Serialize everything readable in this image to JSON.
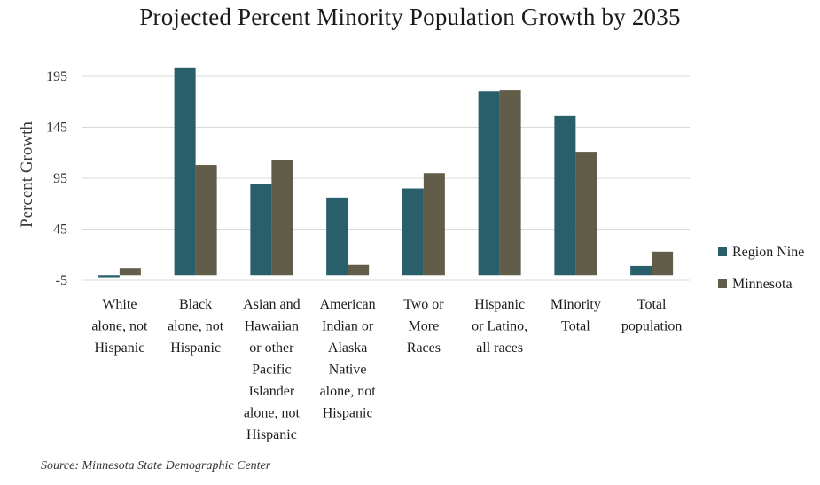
{
  "title": "Projected Percent Minority Population Growth by 2035",
  "source": "Source: Minnesota State Demographic Center",
  "chart_data": {
    "type": "bar",
    "title": "Projected Percent Minority Population Growth by 2035",
    "xlabel": "",
    "ylabel": "Percent Growth",
    "ylim": [
      -5,
      210
    ],
    "yticks": [
      -5,
      45,
      95,
      145,
      195
    ],
    "grid": true,
    "legend_position": "right",
    "categories": [
      [
        "White",
        "alone, not",
        "Hispanic"
      ],
      [
        "Black",
        "alone, not",
        "Hispanic"
      ],
      [
        "Asian and",
        "Hawaiian",
        "or other",
        "Pacific",
        "Islander",
        "alone, not",
        "Hispanic"
      ],
      [
        "American",
        "Indian or",
        "Alaska",
        "Native",
        "alone, not",
        "Hispanic"
      ],
      [
        "Two or",
        "More",
        "Races"
      ],
      [
        "Hispanic",
        "or Latino,",
        "all races"
      ],
      [
        "Minority",
        "Total"
      ],
      [
        "Total",
        "population"
      ]
    ],
    "series": [
      {
        "name": "Region Nine",
        "color": "#285f6b",
        "values": [
          -2,
          203,
          89,
          76,
          85,
          180,
          156,
          9
        ]
      },
      {
        "name": "Minnesota",
        "color": "#625d48",
        "values": [
          7,
          108,
          113,
          10,
          100,
          181,
          121,
          23
        ]
      }
    ]
  }
}
